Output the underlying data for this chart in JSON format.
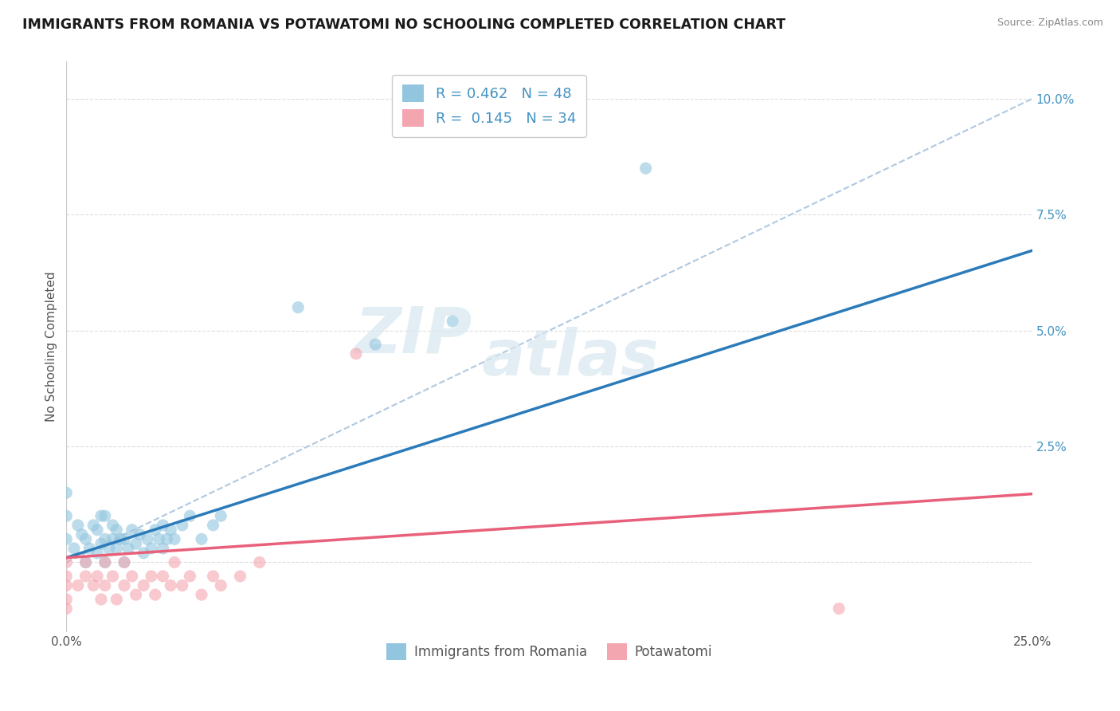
{
  "title": "IMMIGRANTS FROM ROMANIA VS POTAWATOMI NO SCHOOLING COMPLETED CORRELATION CHART",
  "source": "Source: ZipAtlas.com",
  "ylabel": "No Schooling Completed",
  "xlim": [
    0.0,
    0.25
  ],
  "ylim": [
    -0.015,
    0.108
  ],
  "xticks": [
    0.0,
    0.05,
    0.1,
    0.15,
    0.2,
    0.25
  ],
  "xticklabels": [
    "0.0%",
    "",
    "",
    "",
    "",
    "25.0%"
  ],
  "yticks": [
    0.0,
    0.025,
    0.05,
    0.075,
    0.1
  ],
  "yticklabels": [
    "",
    "2.5%",
    "5.0%",
    "7.5%",
    "10.0%"
  ],
  "legend_R1": "0.462",
  "legend_N1": "48",
  "legend_R2": "0.145",
  "legend_N2": "34",
  "color_romania": "#92c5de",
  "color_potawatomi": "#f4a6b0",
  "line_color_romania": "#2b7bba",
  "line_color_potawatomi": "#e8607a",
  "diag_line_color": "#b0c8e0",
  "romania_trendline": [
    0.001,
    0.265
  ],
  "potawatomi_trendline": [
    0.001,
    0.055
  ],
  "diag_trendline_slope": 0.4,
  "romania_scatter_x": [
    0.0,
    0.0,
    0.0,
    0.002,
    0.003,
    0.004,
    0.005,
    0.005,
    0.006,
    0.007,
    0.008,
    0.008,
    0.009,
    0.009,
    0.01,
    0.01,
    0.01,
    0.011,
    0.012,
    0.012,
    0.013,
    0.013,
    0.014,
    0.015,
    0.015,
    0.016,
    0.017,
    0.018,
    0.019,
    0.02,
    0.021,
    0.022,
    0.023,
    0.024,
    0.025,
    0.025,
    0.026,
    0.027,
    0.028,
    0.03,
    0.032,
    0.035,
    0.038,
    0.04,
    0.06,
    0.08,
    0.1,
    0.15
  ],
  "romania_scatter_y": [
    0.005,
    0.01,
    0.015,
    0.003,
    0.008,
    0.006,
    0.0,
    0.005,
    0.003,
    0.008,
    0.002,
    0.007,
    0.004,
    0.01,
    0.0,
    0.005,
    0.01,
    0.003,
    0.005,
    0.008,
    0.003,
    0.007,
    0.005,
    0.0,
    0.005,
    0.003,
    0.007,
    0.004,
    0.006,
    0.002,
    0.005,
    0.003,
    0.007,
    0.005,
    0.003,
    0.008,
    0.005,
    0.007,
    0.005,
    0.008,
    0.01,
    0.005,
    0.008,
    0.01,
    0.055,
    0.047,
    0.052,
    0.085
  ],
  "potawatomi_scatter_x": [
    0.0,
    0.0,
    0.0,
    0.0,
    0.0,
    0.003,
    0.005,
    0.005,
    0.007,
    0.008,
    0.009,
    0.01,
    0.01,
    0.012,
    0.013,
    0.015,
    0.015,
    0.017,
    0.018,
    0.02,
    0.022,
    0.023,
    0.025,
    0.027,
    0.028,
    0.03,
    0.032,
    0.035,
    0.038,
    0.04,
    0.045,
    0.05,
    0.075,
    0.2
  ],
  "potawatomi_scatter_y": [
    -0.005,
    0.0,
    -0.008,
    -0.003,
    -0.01,
    -0.005,
    -0.003,
    0.0,
    -0.005,
    -0.003,
    -0.008,
    -0.005,
    0.0,
    -0.003,
    -0.008,
    -0.005,
    0.0,
    -0.003,
    -0.007,
    -0.005,
    -0.003,
    -0.007,
    -0.003,
    -0.005,
    0.0,
    -0.005,
    -0.003,
    -0.007,
    -0.003,
    -0.005,
    -0.003,
    0.0,
    0.045,
    -0.01
  ]
}
